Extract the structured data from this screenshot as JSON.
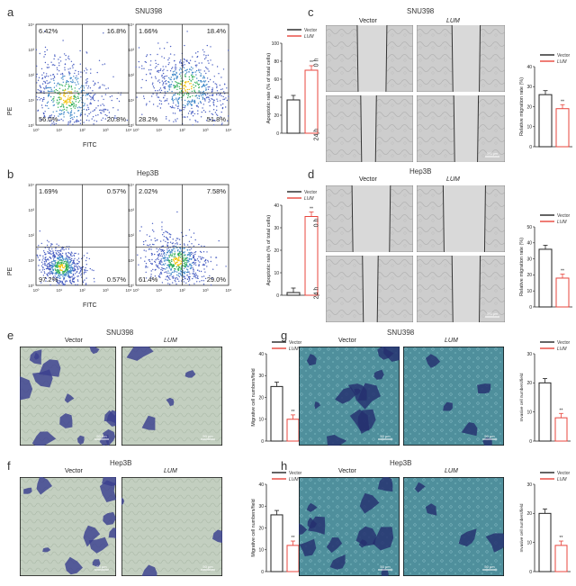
{
  "panels": {
    "a": {
      "letter": "a",
      "title": "SNU398",
      "plots": [
        {
          "q": [
            "6.42%",
            "16.8%",
            "56.0%",
            "20.8%"
          ]
        },
        {
          "q": [
            "1.66%",
            "18.4%",
            "28.2%",
            "51.8%"
          ]
        }
      ],
      "ylab": "PE",
      "xlab": "FITC"
    },
    "b": {
      "letter": "b",
      "title": "Hep3B",
      "plots": [
        {
          "q": [
            "1.69%",
            "0.57%",
            "97.2%",
            "0.57%"
          ]
        },
        {
          "q": [
            "2.02%",
            "7.58%",
            "61.4%",
            "29.0%"
          ]
        }
      ],
      "ylab": "PE",
      "xlab": "FITC"
    },
    "c": {
      "letter": "c",
      "title": "SNU398",
      "cols": [
        "Vector",
        "LUM"
      ],
      "rows": [
        "0 h",
        "24 h"
      ],
      "scale": "500 μm"
    },
    "d": {
      "letter": "d",
      "title": "Hep3B",
      "cols": [
        "Vector",
        "LUM"
      ],
      "rows": [
        "0 h",
        "24 h"
      ],
      "scale": "500 μm"
    },
    "e": {
      "letter": "e",
      "title": "SNU398",
      "cols": [
        "Vector",
        "LUM"
      ],
      "scale": "50 μm"
    },
    "f": {
      "letter": "f",
      "title": "Hep3B",
      "cols": [
        "Vector",
        "LUM"
      ],
      "scale": "50 μm"
    },
    "g": {
      "letter": "g",
      "title": "SNU398",
      "cols": [
        "Vector",
        "LUM"
      ],
      "scale": "50 μm"
    },
    "h": {
      "letter": "h",
      "title": "Hep3B",
      "cols": [
        "Vector",
        "LUM"
      ],
      "scale": "50 μm"
    }
  },
  "axis_ticks": {
    "exp": [
      "10⁰",
      "10¹",
      "10²",
      "10³",
      "10⁴"
    ]
  },
  "colors": {
    "vector": "#222222",
    "lum": "#e8453c"
  },
  "chart_data": [
    {
      "id": "a-bar",
      "type": "bar",
      "ylabel": "Apoptotic rate (% of total cells)",
      "ylim": [
        0,
        100
      ],
      "yticks": [
        0,
        20,
        40,
        60,
        80,
        100
      ],
      "series": [
        {
          "name": "Vector",
          "values": [
            37
          ]
        },
        {
          "name": "LUM",
          "values": [
            70
          ]
        }
      ],
      "sig": "**"
    },
    {
      "id": "b-bar",
      "type": "bar",
      "ylabel": "Apoptotic rate (% of total cells)",
      "ylim": [
        0,
        40
      ],
      "yticks": [
        0,
        10,
        20,
        30,
        40
      ],
      "series": [
        {
          "name": "Vector",
          "values": [
            1.2
          ]
        },
        {
          "name": "LUM",
          "values": [
            35
          ]
        }
      ],
      "sig": "**"
    },
    {
      "id": "c-bar",
      "type": "bar",
      "ylabel": "Relative migration rate (%)",
      "ylim": [
        0,
        40
      ],
      "yticks": [
        0,
        10,
        20,
        30,
        40
      ],
      "series": [
        {
          "name": "Vector",
          "values": [
            26
          ]
        },
        {
          "name": "LUM",
          "values": [
            19
          ]
        }
      ],
      "sig": "**"
    },
    {
      "id": "d-bar",
      "type": "bar",
      "ylabel": "Relative migration rate (%)",
      "ylim": [
        0,
        50
      ],
      "yticks": [
        0,
        10,
        20,
        30,
        40,
        50
      ],
      "series": [
        {
          "name": "Vector",
          "values": [
            36
          ]
        },
        {
          "name": "LUM",
          "values": [
            18
          ]
        }
      ],
      "sig": "**"
    },
    {
      "id": "e-bar",
      "type": "bar",
      "ylabel": "Migrative cell numbers/field",
      "ylim": [
        0,
        40
      ],
      "yticks": [
        0,
        10,
        20,
        30,
        40
      ],
      "series": [
        {
          "name": "Vector",
          "values": [
            25
          ]
        },
        {
          "name": "LUM",
          "values": [
            10
          ]
        }
      ],
      "sig": "**"
    },
    {
      "id": "f-bar",
      "type": "bar",
      "ylabel": "Migrative cell numbers/field",
      "ylim": [
        0,
        40
      ],
      "yticks": [
        0,
        10,
        20,
        30,
        40
      ],
      "series": [
        {
          "name": "Vector",
          "values": [
            26
          ]
        },
        {
          "name": "LUM",
          "values": [
            12
          ]
        }
      ],
      "sig": "**"
    },
    {
      "id": "g-bar",
      "type": "bar",
      "ylabel": "Invasive cell numbers/field",
      "ylim": [
        0,
        30
      ],
      "yticks": [
        0,
        10,
        20,
        30
      ],
      "series": [
        {
          "name": "Vector",
          "values": [
            20
          ]
        },
        {
          "name": "LUM",
          "values": [
            8
          ]
        }
      ],
      "sig": "**"
    },
    {
      "id": "h-bar",
      "type": "bar",
      "ylabel": "Invasive cell numbers/field",
      "ylim": [
        0,
        30
      ],
      "yticks": [
        0,
        10,
        20,
        30
      ],
      "series": [
        {
          "name": "Vector",
          "values": [
            20
          ]
        },
        {
          "name": "LUM",
          "values": [
            9
          ]
        }
      ],
      "sig": "**"
    }
  ]
}
